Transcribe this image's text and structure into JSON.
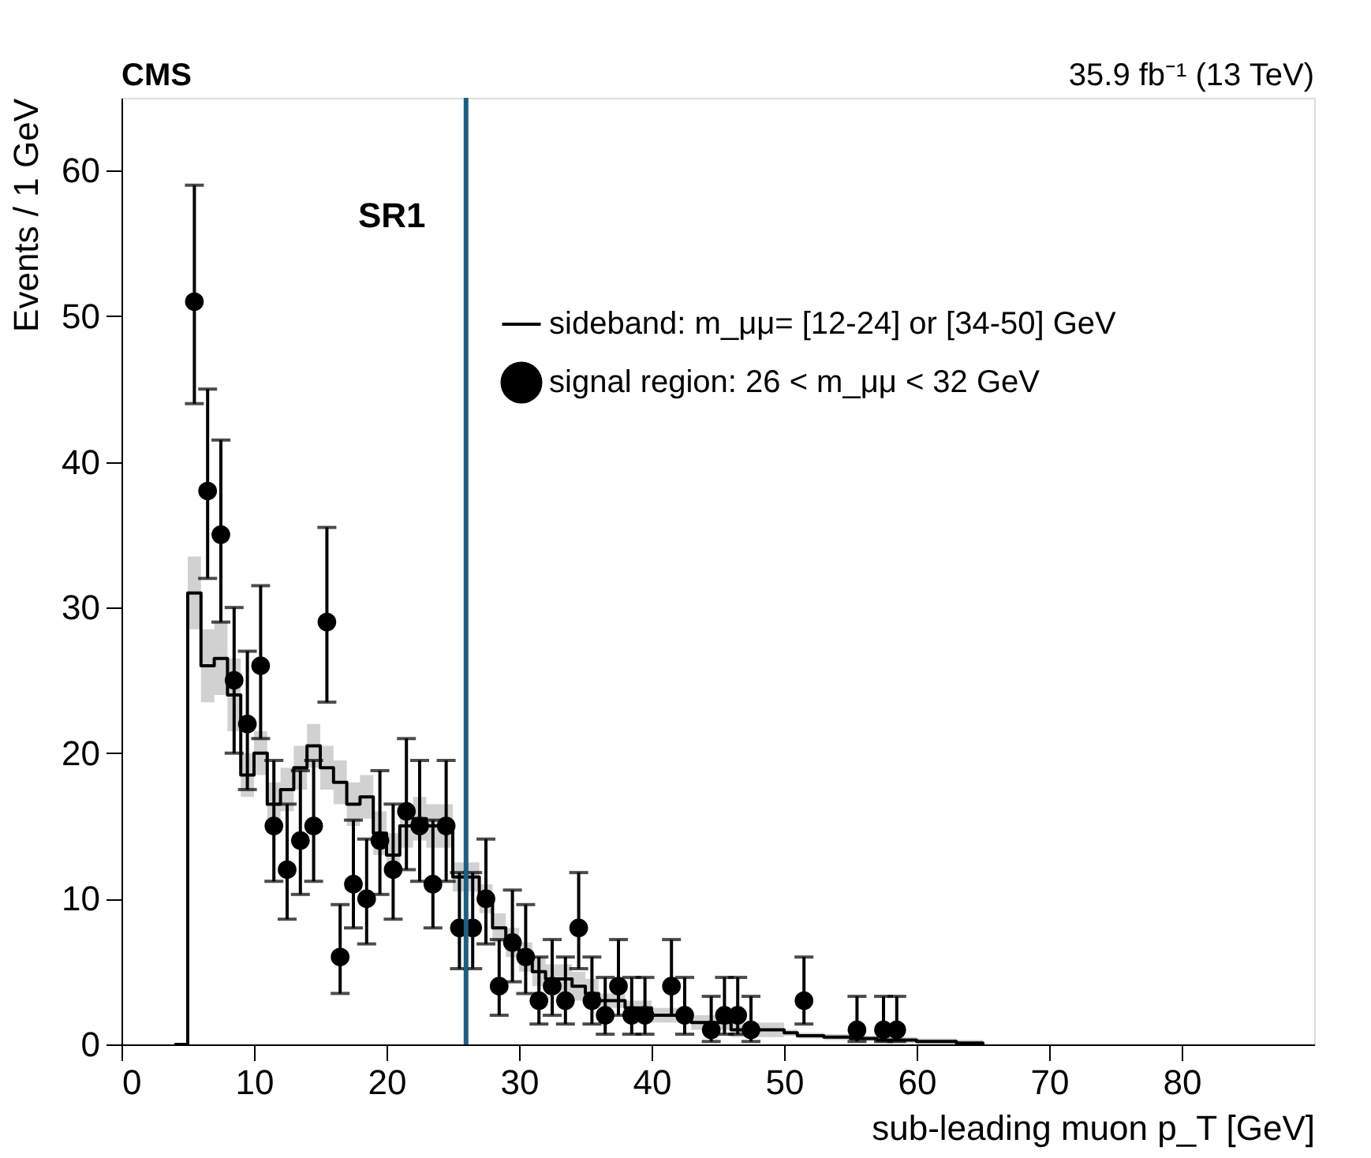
{
  "chart_data": {
    "type": "scatter",
    "title": "CMS",
    "subtitle": "35.9 fb⁻¹ (13 TeV)",
    "xlabel": "sub-leading muon p_T [GeV]",
    "ylabel": "Events / 1 GeV",
    "annotations": [
      "SR1"
    ],
    "xlim": [
      0,
      90
    ],
    "xticks": [
      0,
      10,
      20,
      30,
      40,
      50,
      60,
      70,
      80
    ],
    "ylim": [
      0,
      65
    ],
    "yticks": [
      0,
      10,
      20,
      30,
      40,
      50,
      60
    ],
    "grid": false,
    "legend": "top",
    "ref_lines": [
      {
        "axis": "x",
        "value": 26,
        "color": "#1a5f86"
      }
    ],
    "series": [
      {
        "name": "sideband: m_μμ= [12-24] or [34-50] GeV",
        "type": "step",
        "color": "#000000",
        "marker": "none",
        "x": [
          4,
          5,
          6,
          7,
          8,
          9,
          10,
          11,
          12,
          13,
          14,
          15,
          16,
          17,
          18,
          19,
          20,
          21,
          22,
          23,
          24,
          25,
          26,
          27,
          28,
          29,
          30,
          31,
          32,
          33,
          34,
          35,
          36,
          37,
          38,
          39,
          40,
          41,
          42,
          43,
          44,
          45,
          46,
          47,
          48,
          49,
          50,
          51,
          52,
          53,
          54,
          55,
          56,
          57,
          58,
          59,
          60,
          61,
          62,
          63,
          64,
          65
        ],
        "values": [
          0,
          31,
          26,
          26.5,
          24,
          18.5,
          20,
          16.5,
          17.5,
          19,
          20.5,
          19,
          18,
          16.5,
          17,
          14.5,
          13,
          15,
          15.5,
          15,
          15,
          11.5,
          11.5,
          10,
          8,
          7,
          6,
          5,
          4.5,
          4.5,
          4,
          3.5,
          3,
          3,
          2.5,
          2.5,
          2,
          2,
          2,
          1.5,
          1.5,
          1.5,
          1,
          1,
          1,
          1,
          0.8,
          0.6,
          0.6,
          0.5,
          0.5,
          0.4,
          0.4,
          0.3,
          0.3,
          0.3,
          0.2,
          0.2,
          0.2,
          0.1,
          0.1,
          0
        ],
        "lower": [
          0,
          28.5,
          23.5,
          24,
          21.5,
          17,
          18.5,
          15,
          16,
          17.5,
          19,
          17.5,
          16.5,
          15,
          15.5,
          13,
          11.5,
          13.5,
          14,
          13.5,
          13.5,
          10.5,
          10.5,
          9,
          7,
          6,
          5,
          4,
          3.5,
          3.5,
          3,
          2.5,
          2.5,
          2.5,
          2,
          2,
          1.5,
          1.5,
          1.5,
          1,
          1,
          1,
          0.5,
          0.5,
          0.5,
          0.5,
          0.6,
          0.4,
          0.4,
          0.3,
          0.3,
          0.2,
          0.2,
          0.1,
          0.1,
          0.1,
          0,
          0,
          0,
          0,
          0,
          0
        ],
        "upper": [
          0,
          33.5,
          28.5,
          29,
          26.5,
          20,
          21.5,
          18,
          19,
          20.5,
          22,
          20.5,
          19.5,
          18,
          18.5,
          16,
          14.5,
          16.5,
          17,
          16.5,
          16.5,
          12.5,
          12.5,
          11,
          9,
          8,
          7,
          6,
          5.5,
          5.5,
          5,
          4.5,
          3.5,
          3.5,
          3,
          3,
          2.5,
          2.5,
          2.5,
          2,
          2,
          2,
          1.5,
          1.5,
          1.5,
          1.5,
          1,
          0.8,
          0.8,
          0.7,
          0.7,
          0.6,
          0.6,
          0.5,
          0.5,
          0.5,
          0.4,
          0.4,
          0.4,
          0.3,
          0.3,
          0
        ]
      },
      {
        "name": "signal region: 26 < m_μμ < 32 GeV",
        "color": "#000000",
        "marker": "circle",
        "x": [
          5.5,
          6.5,
          7.5,
          8.5,
          9.5,
          10.5,
          11.5,
          12.5,
          13.5,
          14.5,
          15.5,
          16.5,
          17.5,
          18.5,
          19.5,
          20.5,
          21.5,
          22.5,
          23.5,
          24.5,
          25.5,
          26.5,
          27.5,
          28.5,
          29.5,
          30.5,
          31.5,
          32.5,
          33.5,
          34.5,
          35.5,
          36.5,
          37.5,
          38.5,
          39.5,
          41.5,
          42.5,
          44.5,
          45.5,
          46.5,
          47.5,
          51.5,
          55.5,
          57.5,
          58.5
        ],
        "values": [
          51,
          38,
          35,
          25,
          22,
          26,
          15,
          12,
          14,
          15,
          29,
          6,
          11,
          10,
          14,
          12,
          16,
          15,
          11,
          15,
          8,
          8,
          10,
          4,
          7,
          6,
          3,
          4,
          3,
          8,
          3,
          2,
          4,
          2,
          2,
          4,
          2,
          1,
          2,
          2,
          1,
          3,
          1,
          1,
          1
        ],
        "errors": [
          [
            44,
            59
          ],
          [
            32,
            45
          ],
          [
            29,
            41.5
          ],
          [
            20,
            30
          ],
          [
            17.5,
            27
          ],
          [
            21,
            31.5
          ],
          [
            11.2,
            19.5
          ],
          [
            8.6,
            16.5
          ],
          [
            10.3,
            18.8
          ],
          [
            11.2,
            19.5
          ],
          [
            23.5,
            35.5
          ],
          [
            3.5,
            9.6
          ],
          [
            8,
            15.4
          ],
          [
            6.9,
            14.1
          ],
          [
            10.3,
            18.8
          ],
          [
            8.6,
            16.5
          ],
          [
            12,
            21
          ],
          [
            11.2,
            19.5
          ],
          [
            8,
            15.4
          ],
          [
            11.2,
            19.5
          ],
          [
            5.2,
            11.8
          ],
          [
            5.2,
            11.8
          ],
          [
            6.9,
            14.1
          ],
          [
            2,
            7.2
          ],
          [
            4.3,
            10.6
          ],
          [
            3.5,
            9.6
          ],
          [
            1.4,
            6
          ],
          [
            2,
            7.2
          ],
          [
            1.4,
            6
          ],
          [
            5.2,
            11.8
          ],
          [
            1.4,
            6
          ],
          [
            0.7,
            4.6
          ],
          [
            2,
            7.2
          ],
          [
            0.7,
            4.6
          ],
          [
            0.7,
            4.6
          ],
          [
            2,
            7.2
          ],
          [
            0.7,
            4.6
          ],
          [
            0.2,
            3.3
          ],
          [
            0.7,
            4.6
          ],
          [
            0.7,
            4.6
          ],
          [
            0.2,
            3.3
          ],
          [
            1.4,
            6
          ],
          [
            0.2,
            3.3
          ],
          [
            0.2,
            3.3
          ],
          [
            0.2,
            3.3
          ]
        ]
      }
    ]
  }
}
